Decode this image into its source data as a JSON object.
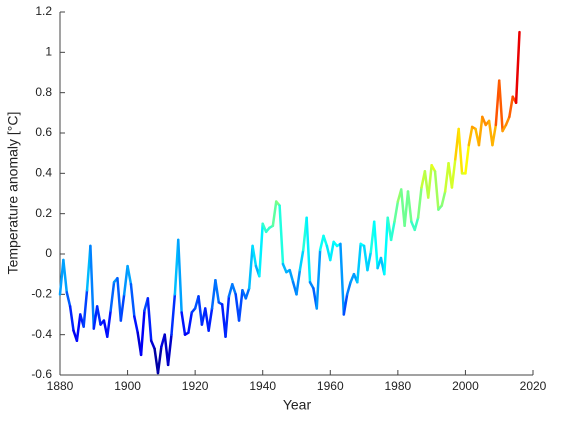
{
  "chart_data": {
    "type": "line",
    "colormap": "jet",
    "x_label": "Year",
    "y_label": "Temperature anomaly [°C]",
    "x": [
      1880,
      1881,
      1882,
      1883,
      1884,
      1885,
      1886,
      1887,
      1888,
      1889,
      1890,
      1891,
      1892,
      1893,
      1894,
      1895,
      1896,
      1897,
      1898,
      1899,
      1900,
      1901,
      1902,
      1903,
      1904,
      1905,
      1906,
      1907,
      1908,
      1909,
      1910,
      1911,
      1912,
      1913,
      1914,
      1915,
      1916,
      1917,
      1918,
      1919,
      1920,
      1921,
      1922,
      1923,
      1924,
      1925,
      1926,
      1927,
      1928,
      1929,
      1930,
      1931,
      1932,
      1933,
      1934,
      1935,
      1936,
      1937,
      1938,
      1939,
      1940,
      1941,
      1942,
      1943,
      1944,
      1945,
      1946,
      1947,
      1948,
      1949,
      1950,
      1951,
      1952,
      1953,
      1954,
      1955,
      1956,
      1957,
      1958,
      1959,
      1960,
      1961,
      1962,
      1963,
      1964,
      1965,
      1966,
      1967,
      1968,
      1969,
      1970,
      1971,
      1972,
      1973,
      1974,
      1975,
      1976,
      1977,
      1978,
      1979,
      1980,
      1981,
      1982,
      1983,
      1984,
      1985,
      1986,
      1987,
      1988,
      1989,
      1990,
      1991,
      1992,
      1993,
      1994,
      1995,
      1996,
      1997,
      1998,
      1999,
      2000,
      2001,
      2002,
      2003,
      2004,
      2005,
      2006,
      2007,
      2008,
      2009,
      2010,
      2011,
      2012,
      2013,
      2014,
      2015,
      2016
    ],
    "values": [
      -0.2,
      -0.03,
      -0.19,
      -0.26,
      -0.38,
      -0.43,
      -0.3,
      -0.36,
      -0.18,
      0.04,
      -0.37,
      -0.26,
      -0.35,
      -0.33,
      -0.41,
      -0.28,
      -0.14,
      -0.12,
      -0.33,
      -0.2,
      -0.06,
      -0.15,
      -0.31,
      -0.39,
      -0.5,
      -0.28,
      -0.22,
      -0.43,
      -0.47,
      -0.59,
      -0.46,
      -0.4,
      -0.55,
      -0.4,
      -0.2,
      0.07,
      -0.29,
      -0.4,
      -0.39,
      -0.29,
      -0.27,
      -0.21,
      -0.35,
      -0.27,
      -0.38,
      -0.27,
      -0.13,
      -0.24,
      -0.25,
      -0.41,
      -0.21,
      -0.15,
      -0.2,
      -0.33,
      -0.18,
      -0.22,
      -0.17,
      0.04,
      -0.06,
      -0.11,
      0.15,
      0.11,
      0.13,
      0.14,
      0.26,
      0.24,
      -0.05,
      -0.09,
      -0.08,
      -0.14,
      -0.2,
      -0.08,
      0.02,
      0.18,
      -0.14,
      -0.17,
      -0.27,
      0.02,
      0.09,
      0.04,
      -0.03,
      0.06,
      0.04,
      0.05,
      -0.3,
      -0.2,
      -0.14,
      -0.1,
      -0.14,
      0.05,
      0.04,
      -0.08,
      0.01,
      0.16,
      -0.07,
      -0.02,
      -0.1,
      0.18,
      0.07,
      0.16,
      0.26,
      0.32,
      0.14,
      0.31,
      0.16,
      0.12,
      0.18,
      0.33,
      0.41,
      0.28,
      0.44,
      0.41,
      0.22,
      0.24,
      0.31,
      0.45,
      0.33,
      0.47,
      0.62,
      0.4,
      0.4,
      0.54,
      0.63,
      0.62,
      0.54,
      0.68,
      0.64,
      0.66,
      0.54,
      0.64,
      0.86,
      0.61,
      0.64,
      0.68,
      0.78,
      0.75,
      1.1
    ],
    "xlim": [
      1880,
      2020
    ],
    "xticks": [
      1880,
      1900,
      1920,
      1940,
      1960,
      1980,
      2000,
      2020
    ],
    "ylim": [
      -0.6,
      1.2
    ],
    "yticks": [
      -0.6,
      -0.4,
      -0.2,
      0,
      0.2,
      0.4,
      0.6,
      0.8,
      1,
      1.2
    ]
  }
}
